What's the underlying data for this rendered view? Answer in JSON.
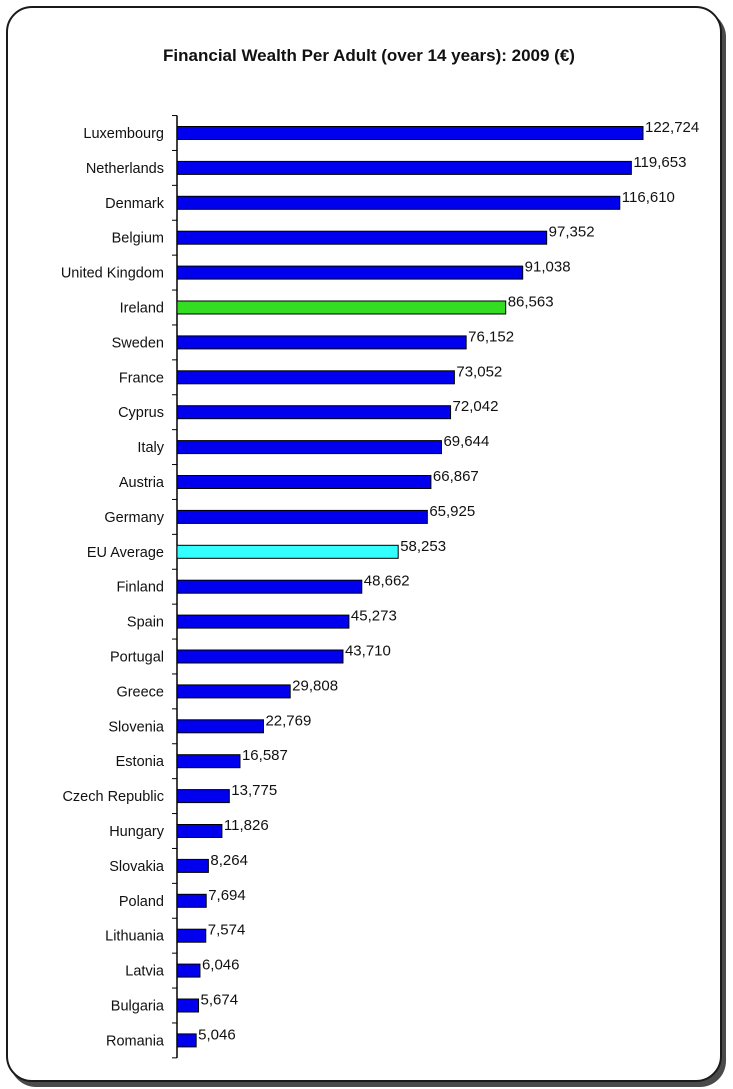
{
  "chart_data": {
    "type": "bar",
    "orientation": "horizontal",
    "title": "Financial Wealth Per Adult (over 14 years): 2009 (€)",
    "xlabel": "",
    "ylabel": "",
    "xlim": [
      0,
      125000
    ],
    "grid": false,
    "categories": [
      "Luxembourg",
      "Netherlands",
      "Denmark",
      "Belgium",
      "United Kingdom",
      "Ireland",
      "Sweden",
      "France",
      "Cyprus",
      "Italy",
      "Austria",
      "Germany",
      "EU Average",
      "Finland",
      "Spain",
      "Portugal",
      "Greece",
      "Slovenia",
      "Estonia",
      "Czech Republic",
      "Hungary",
      "Slovakia",
      "Poland",
      "Lithuania",
      "Latvia",
      "Bulgaria",
      "Romania"
    ],
    "values": [
      122724,
      119653,
      116610,
      97352,
      91038,
      86563,
      76152,
      73052,
      72042,
      69644,
      66867,
      65925,
      58253,
      48662,
      45273,
      43710,
      29808,
      22769,
      16587,
      13775,
      11826,
      8264,
      7694,
      7574,
      6046,
      5674,
      5046
    ],
    "value_labels": [
      "122,724",
      "119,653",
      "116,610",
      "97,352",
      "91,038",
      "86,563",
      "76,152",
      "73,052",
      "72,042",
      "69,644",
      "66,867",
      "65,925",
      "58,253",
      "48,662",
      "45,273",
      "43,710",
      "29,808",
      "22,769",
      "16,587",
      "13,775",
      "11,826",
      "8,264",
      "7,694",
      "7,574",
      "6,046",
      "5,674",
      "5,046"
    ],
    "colors": {
      "default": "#0000ee",
      "highlight": {
        "Ireland": "#33dd22",
        "EU Average": "#33ffff"
      },
      "outline": "#000000"
    }
  }
}
